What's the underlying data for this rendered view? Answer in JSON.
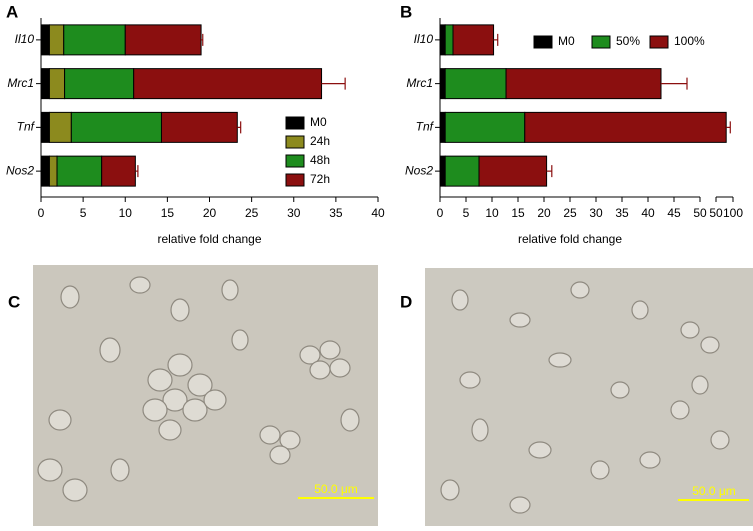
{
  "panel_labels": [
    "A",
    "B",
    "C",
    "D"
  ],
  "chart_data": [
    {
      "type": "stacked-hbar",
      "xlabel": "relative fold change",
      "categories": [
        "Il10",
        "Mrc1",
        "Tnf",
        "Nos2"
      ],
      "series": [
        {
          "name": "M0",
          "color": "#000000",
          "values": [
            1.0,
            1.0,
            1.0,
            1.0
          ]
        },
        {
          "name": "24h",
          "color": "#8c8a1e",
          "values": [
            1.7,
            1.8,
            2.6,
            0.9
          ]
        },
        {
          "name": "48h",
          "color": "#1e8c1e",
          "values": [
            7.3,
            8.2,
            10.7,
            5.3
          ],
          "errors": [
            2.3,
            0.7,
            1.5,
            0.8
          ]
        },
        {
          "name": "72h",
          "color": "#8b0f0f",
          "values": [
            9.0,
            22.3,
            9.0,
            4.0
          ],
          "errors": [
            0.2,
            2.8,
            0.4,
            0.3
          ]
        }
      ],
      "xsegments": [
        {
          "xlim": [
            0,
            40
          ],
          "xticks": [
            0,
            5,
            10,
            15,
            20,
            25,
            30,
            35,
            40
          ]
        }
      ],
      "legend": "lower right"
    },
    {
      "type": "stacked-hbar",
      "xlabel": "relative fold change",
      "categories": [
        "Il10",
        "Mrc1",
        "Tnf",
        "Nos2"
      ],
      "series": [
        {
          "name": "M0",
          "color": "#000000",
          "values": [
            1.0,
            1.0,
            1.0,
            1.0
          ]
        },
        {
          "name": "50%",
          "color": "#1e8c1e",
          "values": [
            1.5,
            11.7,
            15.3,
            6.5
          ],
          "errors": [
            0.3,
            3.0,
            5.0,
            1.5
          ]
        },
        {
          "name": "100%",
          "color": "#8b0f0f",
          "values": [
            7.8,
            29.8,
            63.7,
            13.0
          ],
          "errors": [
            0.8,
            5.0,
            12.0,
            1.0
          ]
        }
      ],
      "xsegments": [
        {
          "xlim": [
            0,
            50
          ],
          "xticks": [
            0,
            5,
            10,
            15,
            20,
            25,
            30,
            35,
            40,
            45,
            50
          ]
        },
        {
          "xlim": [
            50,
            100
          ],
          "xticks": [
            50,
            100
          ]
        }
      ],
      "legend": "upper right"
    }
  ],
  "micrographs": [
    {
      "scale_bar": "50.0 μm"
    },
    {
      "scale_bar": "50.0 μm"
    }
  ]
}
